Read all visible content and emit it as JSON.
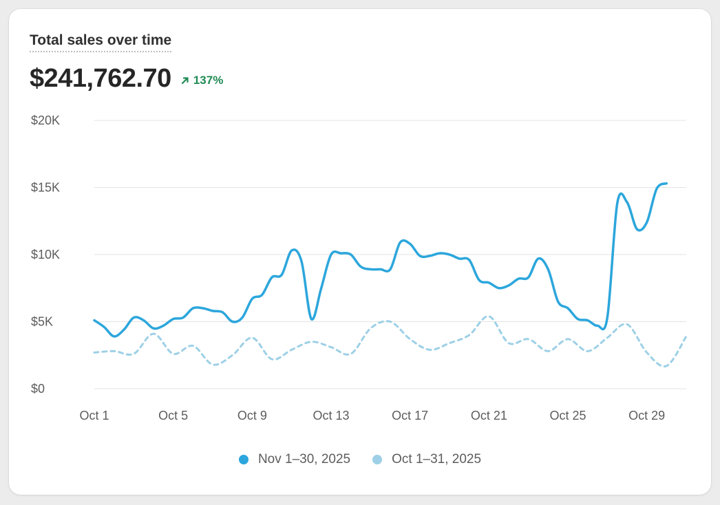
{
  "header": {
    "title": "Total sales over time",
    "total": "$241,762.70",
    "change": "137%",
    "change_icon": "arrow-up-right-icon"
  },
  "colors": {
    "current": "#2ca6dc",
    "previous": "#9dd0e6",
    "grid": "#e3e3e3",
    "positive": "#1f8a53"
  },
  "legend": {
    "position": "bottom-center",
    "current_label": "Nov 1–30, 2025",
    "previous_label": "Oct 1–31, 2025"
  },
  "chart_data": {
    "type": "line",
    "title": "Total sales over time",
    "xlabel": "",
    "ylabel": "",
    "ylim": [
      0,
      20000
    ],
    "yticks": [
      0,
      5000,
      10000,
      15000,
      20000
    ],
    "ytick_labels": [
      "$0",
      "$5K",
      "$10K",
      "$15K",
      "$20K"
    ],
    "xtick_labels": [
      "Oct 1",
      "Oct 5",
      "Oct 9",
      "Oct 13",
      "Oct 17",
      "Oct 21",
      "Oct 25",
      "Oct 29"
    ],
    "xtick_index": [
      1,
      5,
      9,
      13,
      17,
      21,
      25,
      29
    ],
    "grid": true,
    "series": [
      {
        "name": "Nov 1–30, 2025",
        "style": "solid",
        "x": [
          1,
          1.5,
          2,
          2.5,
          3,
          3.5,
          4,
          4.5,
          5,
          5.5,
          6,
          6.5,
          7,
          7.5,
          8,
          8.5,
          9,
          9.5,
          10,
          10.5,
          11,
          11.5,
          12,
          12.5,
          13,
          13.5,
          14,
          14.5,
          15,
          15.5,
          16,
          16.5,
          17,
          17.5,
          18,
          18.5,
          19,
          19.5,
          20,
          20.5,
          21,
          21.5,
          22,
          22.5,
          23,
          23.5,
          24,
          24.5,
          25,
          25.5,
          26,
          26.5,
          27,
          27.5,
          28,
          28.5,
          29,
          29.5,
          30
        ],
        "y": [
          5100,
          4600,
          3900,
          4400,
          5300,
          5100,
          4500,
          4700,
          5200,
          5300,
          6000,
          6000,
          5800,
          5700,
          5000,
          5300,
          6700,
          7000,
          8300,
          8500,
          10300,
          9500,
          5200,
          7500,
          10000,
          10100,
          10000,
          9100,
          8900,
          8900,
          8900,
          10900,
          10800,
          9900,
          9900,
          10100,
          10000,
          9700,
          9600,
          8100,
          7900,
          7500,
          7700,
          8200,
          8300,
          9700,
          8900,
          6500,
          6000,
          5200,
          5100,
          4700,
          5300,
          13800,
          13900,
          11900,
          12400,
          14900,
          15300
        ]
      },
      {
        "name": "Oct 1–31, 2025",
        "style": "dashed",
        "x": [
          1,
          2,
          3,
          4,
          5,
          6,
          7,
          8,
          9,
          10,
          11,
          12,
          13,
          14,
          15,
          16,
          17,
          18,
          19,
          20,
          21,
          22,
          23,
          24,
          25,
          26,
          27,
          28,
          29,
          30,
          31
        ],
        "y": [
          2700,
          2800,
          2600,
          4100,
          2600,
          3200,
          1800,
          2500,
          3800,
          2200,
          2900,
          3500,
          3100,
          2600,
          4500,
          5000,
          3700,
          2900,
          3400,
          4000,
          5400,
          3400,
          3700,
          2800,
          3700,
          2800,
          3800,
          4800,
          2700,
          1700,
          3900
        ]
      }
    ]
  }
}
